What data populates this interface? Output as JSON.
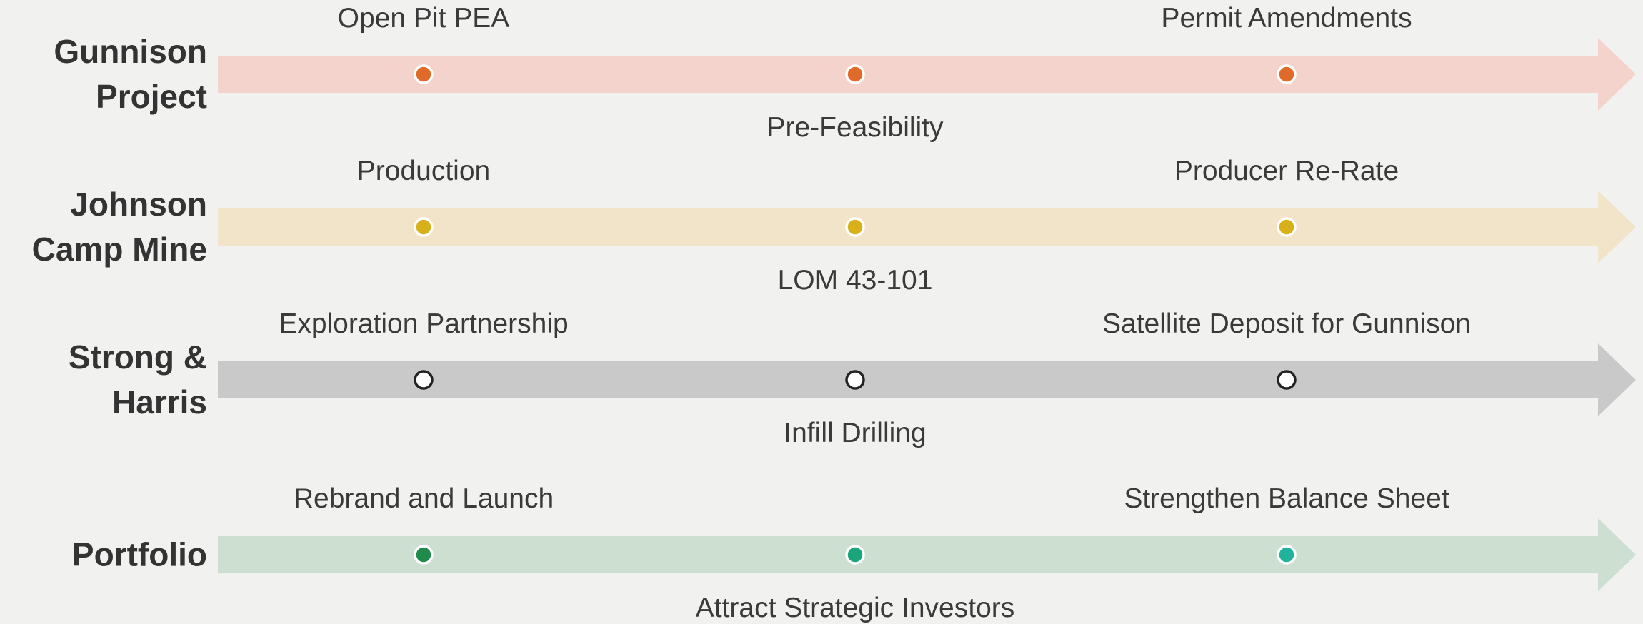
{
  "rows": [
    {
      "label": "Gunnison Project",
      "band": "#f5d3cd",
      "dots": [
        "#e06a2a",
        "#e06a2a",
        "#e06a2a"
      ],
      "milestones": [
        "Open Pit PEA",
        "Pre-Feasibility",
        "Permit Amendments"
      ]
    },
    {
      "label": "Johnson Camp Mine",
      "band": "#f2e4c9",
      "dots": [
        "#d8b01a",
        "#d8b01a",
        "#d8b01a"
      ],
      "milestones": [
        "Production",
        "LOM 43-101",
        "Producer Re-Rate"
      ]
    },
    {
      "label": "Strong & Harris",
      "band": "#c9c9c9",
      "dots": [
        "#ffffff",
        "#ffffff",
        "#ffffff"
      ],
      "milestones": [
        "Exploration Partnership",
        "Infill Drilling",
        "Satellite Deposit for Gunnison"
      ]
    },
    {
      "label": "Portfolio",
      "band": "#ccdfd0",
      "dots": [
        "#1f8a4c",
        "#1aa57a",
        "#20b29a"
      ],
      "milestones": [
        "Rebrand and Launch",
        "Attract Strategic Investors",
        "Strengthen Balance Sheet"
      ]
    }
  ]
}
